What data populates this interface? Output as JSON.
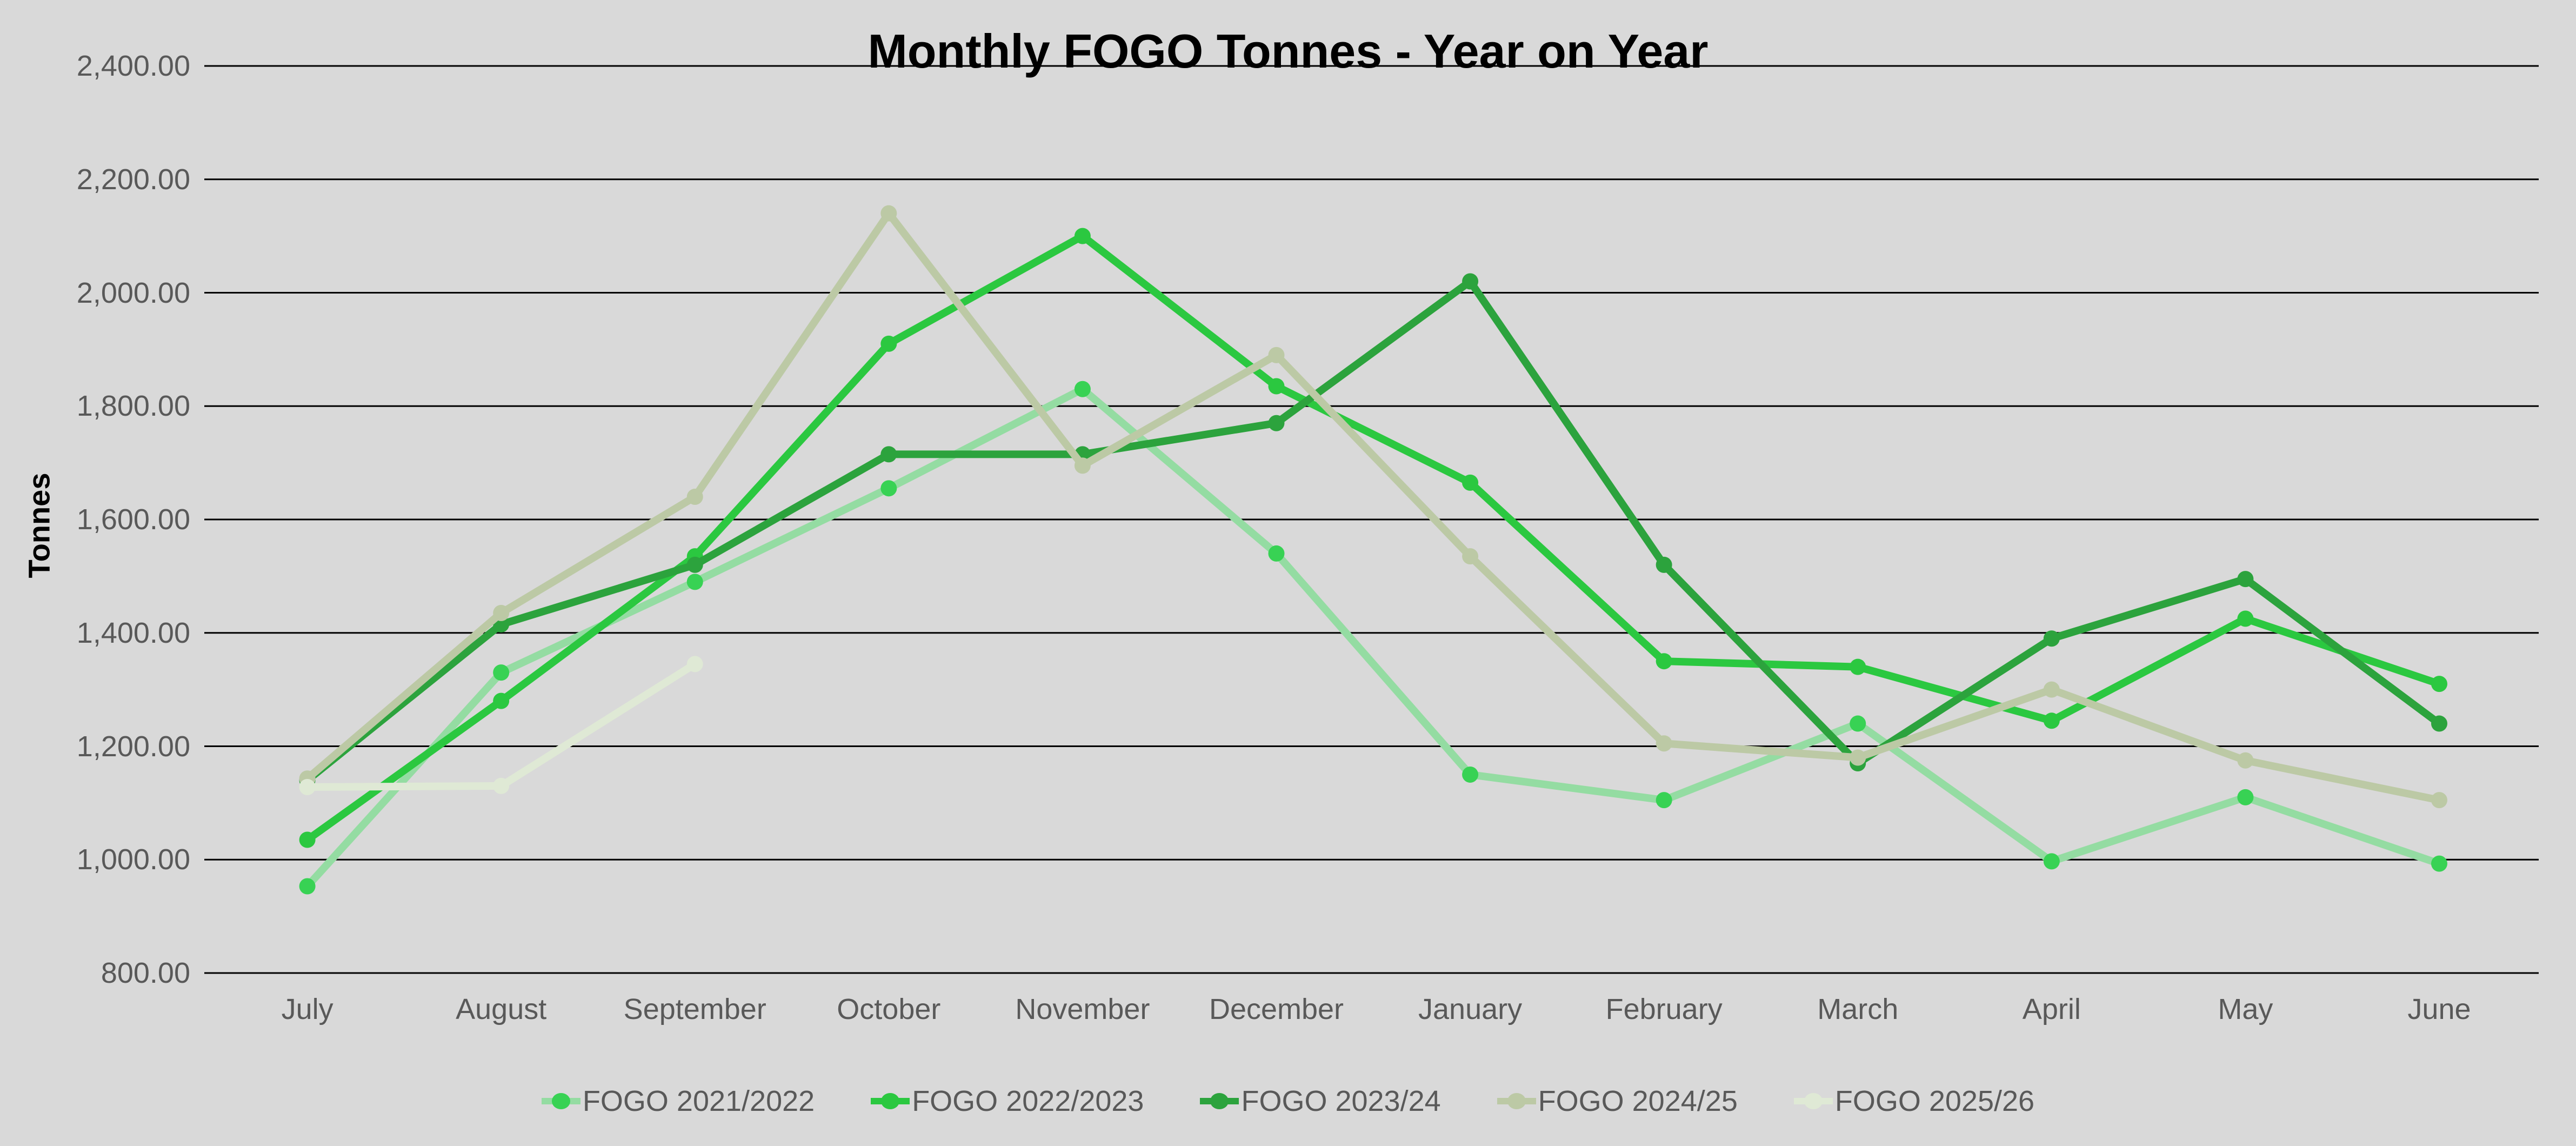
{
  "chart_data": {
    "type": "line",
    "title": "Monthly FOGO Tonnes - Year on Year",
    "ylabel": "Tonnes",
    "xlabel": "",
    "categories": [
      "July",
      "August",
      "September",
      "October",
      "November",
      "December",
      "January",
      "February",
      "March",
      "April",
      "May",
      "June"
    ],
    "series": [
      {
        "name": "FOGO 2021/2022",
        "line_color": "#94DCA2",
        "marker_color": "#38D254",
        "values": [
          953,
          1330,
          1490,
          1655,
          1830,
          1540,
          1150,
          1105,
          1240,
          997,
          1110,
          993
        ]
      },
      {
        "name": "FOGO 2022/2023",
        "line_color": "#2BC840",
        "marker_color": "#2BC840",
        "values": [
          1035,
          1280,
          1535,
          1910,
          2100,
          1835,
          1665,
          1350,
          1340,
          1245,
          1425,
          1310
        ]
      },
      {
        "name": "FOGO 2023/24",
        "line_color": "#2CA33D",
        "marker_color": "#2CA33D",
        "values": [
          1140,
          1415,
          1520,
          1715,
          1715,
          1770,
          2020,
          1520,
          1170,
          1390,
          1495,
          1240
        ]
      },
      {
        "name": "FOGO 2024/25",
        "line_color": "#BCC9A5",
        "marker_color": "#BCC9A5",
        "values": [
          1143,
          1435,
          1640,
          2140,
          1695,
          1890,
          1535,
          1205,
          1180,
          1300,
          1175,
          1105
        ]
      },
      {
        "name": "FOGO 2025/26",
        "line_color": "#DFE9D5",
        "marker_color": "#DFE9D5",
        "values": [
          1128,
          1130,
          1345,
          null,
          null,
          null,
          null,
          null,
          null,
          null,
          null,
          null
        ]
      }
    ],
    "ylim": [
      800,
      2400
    ],
    "y_tick_step": 200,
    "y_ticks": [
      "2,400.00",
      "2,200.00",
      "2,000.00",
      "1,800.00",
      "1,600.00",
      "1,400.00",
      "1,200.00",
      "1,000.00",
      "800.00"
    ],
    "grid": true,
    "legend_position": "bottom"
  },
  "style": {
    "background": "#D9D9D9",
    "grid_color": "#000000",
    "axis_text_color": "#595959",
    "title_color": "#000000"
  }
}
